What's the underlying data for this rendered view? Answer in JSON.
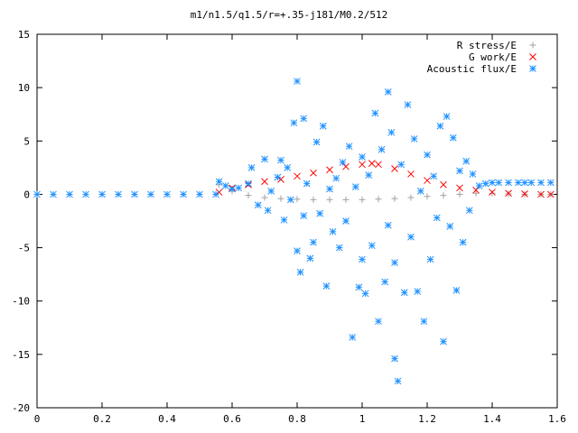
{
  "chart_data": {
    "type": "scatter",
    "title": "m1/n1.5/q1.5/r=+.35-j181/M0.2/512",
    "xlabel": "",
    "ylabel": "",
    "xlim": [
      0,
      1.6
    ],
    "ylim": [
      -20,
      15
    ],
    "x_ticks": [
      "0",
      "0.2",
      "0.4",
      "0.6",
      "0.8",
      "1",
      "1.2",
      "1.4",
      "1.6"
    ],
    "y_ticks": [
      "15",
      "10",
      "5",
      "0",
      "-5",
      "-10",
      "-15",
      "-20"
    ],
    "grid": false,
    "legend_position": "top-right",
    "series": [
      {
        "name": "R stress/E",
        "marker": "plus",
        "color": "#a0a0a0",
        "points": [
          [
            0.56,
            0.9
          ],
          [
            0.6,
            0.3
          ],
          [
            0.65,
            -0.1
          ],
          [
            0.7,
            -0.3
          ],
          [
            0.75,
            -0.4
          ],
          [
            0.8,
            -0.45
          ],
          [
            0.85,
            -0.5
          ],
          [
            0.9,
            -0.5
          ],
          [
            0.95,
            -0.5
          ],
          [
            1.0,
            -0.5
          ],
          [
            1.05,
            -0.45
          ],
          [
            1.1,
            -0.4
          ],
          [
            1.15,
            -0.3
          ],
          [
            1.2,
            -0.2
          ],
          [
            1.25,
            -0.1
          ],
          [
            1.3,
            0.0
          ],
          [
            1.35,
            0.1
          ],
          [
            1.4,
            0.1
          ],
          [
            1.45,
            0.05
          ],
          [
            1.5,
            0.0
          ],
          [
            1.55,
            0.0
          ],
          [
            1.58,
            0.0
          ]
        ]
      },
      {
        "name": "G work/E",
        "marker": "cross",
        "color": "#ff0000",
        "points": [
          [
            0.56,
            0.2
          ],
          [
            0.6,
            0.6
          ],
          [
            0.65,
            0.9
          ],
          [
            0.7,
            1.2
          ],
          [
            0.75,
            1.4
          ],
          [
            0.8,
            1.7
          ],
          [
            0.85,
            2.0
          ],
          [
            0.9,
            2.3
          ],
          [
            0.95,
            2.6
          ],
          [
            1.0,
            2.8
          ],
          [
            1.03,
            2.9
          ],
          [
            1.05,
            2.8
          ],
          [
            1.1,
            2.4
          ],
          [
            1.15,
            1.9
          ],
          [
            1.2,
            1.3
          ],
          [
            1.25,
            0.9
          ],
          [
            1.3,
            0.6
          ],
          [
            1.35,
            0.4
          ],
          [
            1.4,
            0.2
          ],
          [
            1.45,
            0.1
          ],
          [
            1.5,
            0.05
          ],
          [
            1.55,
            0.0
          ],
          [
            1.58,
            0.0
          ]
        ]
      },
      {
        "name": "Acoustic flux/E",
        "marker": "star",
        "color": "#1e90ff",
        "points": [
          [
            0.0,
            0.0
          ],
          [
            0.05,
            0.0
          ],
          [
            0.1,
            0.0
          ],
          [
            0.15,
            0.0
          ],
          [
            0.2,
            0.0
          ],
          [
            0.25,
            0.0
          ],
          [
            0.3,
            0.0
          ],
          [
            0.35,
            0.0
          ],
          [
            0.4,
            0.0
          ],
          [
            0.45,
            0.0
          ],
          [
            0.5,
            0.0
          ],
          [
            0.55,
            0.0
          ],
          [
            0.56,
            1.2
          ],
          [
            0.58,
            0.8
          ],
          [
            0.6,
            0.5
          ],
          [
            0.62,
            0.6
          ],
          [
            0.65,
            1.0
          ],
          [
            0.66,
            2.5
          ],
          [
            0.68,
            -1.0
          ],
          [
            0.7,
            3.3
          ],
          [
            0.71,
            -1.5
          ],
          [
            0.72,
            0.3
          ],
          [
            0.74,
            1.6
          ],
          [
            0.75,
            3.2
          ],
          [
            0.76,
            -2.4
          ],
          [
            0.77,
            2.5
          ],
          [
            0.78,
            -0.5
          ],
          [
            0.79,
            6.7
          ],
          [
            0.8,
            10.6
          ],
          [
            0.8,
            -5.3
          ],
          [
            0.81,
            -7.3
          ],
          [
            0.82,
            7.1
          ],
          [
            0.82,
            -2.0
          ],
          [
            0.83,
            1.0
          ],
          [
            0.84,
            -6.0
          ],
          [
            0.85,
            -4.5
          ],
          [
            0.86,
            4.9
          ],
          [
            0.87,
            -1.8
          ],
          [
            0.88,
            6.4
          ],
          [
            0.89,
            -8.6
          ],
          [
            0.9,
            0.5
          ],
          [
            0.91,
            -3.5
          ],
          [
            0.92,
            1.5
          ],
          [
            0.93,
            -5.0
          ],
          [
            0.94,
            3.0
          ],
          [
            0.95,
            -2.5
          ],
          [
            0.96,
            4.5
          ],
          [
            0.97,
            -13.4
          ],
          [
            0.98,
            0.7
          ],
          [
            0.99,
            -8.7
          ],
          [
            1.0,
            -6.1
          ],
          [
            1.0,
            3.5
          ],
          [
            1.01,
            -9.3
          ],
          [
            1.02,
            1.8
          ],
          [
            1.03,
            -4.8
          ],
          [
            1.04,
            7.6
          ],
          [
            1.05,
            -11.9
          ],
          [
            1.06,
            4.2
          ],
          [
            1.07,
            -8.2
          ],
          [
            1.08,
            9.6
          ],
          [
            1.08,
            -2.9
          ],
          [
            1.09,
            5.8
          ],
          [
            1.1,
            -15.4
          ],
          [
            1.1,
            -6.4
          ],
          [
            1.11,
            -17.5
          ],
          [
            1.12,
            2.8
          ],
          [
            1.13,
            -9.2
          ],
          [
            1.14,
            8.4
          ],
          [
            1.15,
            -4.0
          ],
          [
            1.16,
            5.2
          ],
          [
            1.17,
            -9.1
          ],
          [
            1.18,
            0.3
          ],
          [
            1.19,
            -11.9
          ],
          [
            1.2,
            3.7
          ],
          [
            1.21,
            -6.1
          ],
          [
            1.22,
            1.7
          ],
          [
            1.23,
            -2.2
          ],
          [
            1.24,
            6.4
          ],
          [
            1.25,
            -13.8
          ],
          [
            1.26,
            7.3
          ],
          [
            1.27,
            -3.0
          ],
          [
            1.28,
            5.3
          ],
          [
            1.29,
            -9.0
          ],
          [
            1.3,
            2.2
          ],
          [
            1.31,
            -4.5
          ],
          [
            1.32,
            3.1
          ],
          [
            1.33,
            -1.5
          ],
          [
            1.34,
            1.9
          ],
          [
            1.36,
            0.8
          ],
          [
            1.38,
            1.0
          ],
          [
            1.4,
            1.1
          ],
          [
            1.42,
            1.1
          ],
          [
            1.45,
            1.1
          ],
          [
            1.48,
            1.1
          ],
          [
            1.5,
            1.1
          ],
          [
            1.52,
            1.1
          ],
          [
            1.55,
            1.1
          ],
          [
            1.58,
            1.1
          ]
        ]
      }
    ]
  }
}
